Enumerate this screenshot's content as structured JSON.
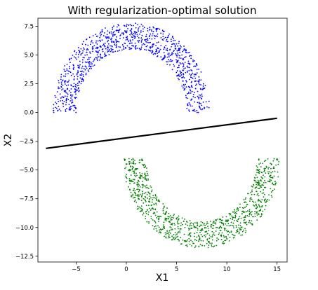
{
  "chart_data": {
    "type": "scatter",
    "title": "With regularization-optimal solution",
    "xlabel": "X1",
    "ylabel": "X2",
    "xlim": [
      -8.8,
      16.0
    ],
    "ylim": [
      -13.0,
      8.2
    ],
    "xticks": [
      -5,
      0,
      5,
      10,
      15
    ],
    "xtick_labels": [
      "−5",
      "0",
      "5",
      "10",
      "15"
    ],
    "yticks": [
      7.5,
      5.0,
      2.5,
      0.0,
      -2.5,
      -5.0,
      -7.5,
      -10.0,
      -12.5
    ],
    "ytick_labels": [
      "7.5",
      "5.0",
      "2.5",
      "0.0",
      "−2.5",
      "−5.0",
      "−7.5",
      "−10.0",
      "−12.5"
    ],
    "grid": false,
    "legend": "none",
    "series": [
      {
        "color": "#0000ff",
        "shape": "upper half-moon",
        "center": [
          0.5,
          0.0
        ],
        "radius_range": [
          5.5,
          7.8
        ],
        "angle_range_deg": [
          0,
          180
        ],
        "count": 1000
      },
      {
        "color": "#008000",
        "shape": "lower half-moon",
        "center": [
          7.5,
          -4.0
        ],
        "radius_range": [
          5.5,
          7.8
        ],
        "angle_range_deg": [
          180,
          360
        ],
        "count": 1000
      }
    ],
    "decision_line": {
      "color": "#000000",
      "x": [
        -8.0,
        15.0
      ],
      "y": [
        -3.12,
        -0.5
      ]
    }
  }
}
